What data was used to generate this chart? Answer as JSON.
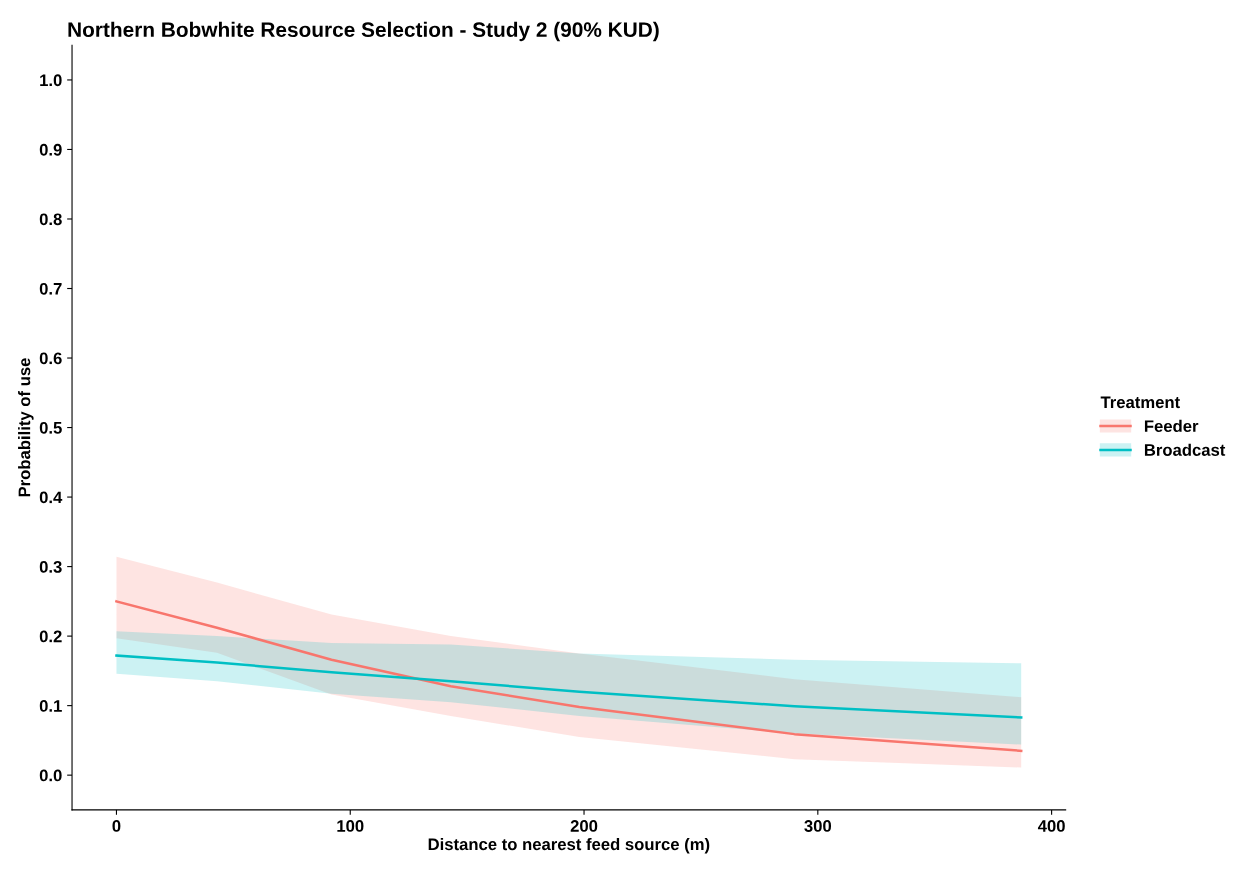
{
  "chart_data": {
    "type": "line",
    "title": "Northern Bobwhite Resource Selection - Study 2 (90% KUD)",
    "xlabel": "Distance to nearest feed source (m)",
    "ylabel": "Probability of use",
    "legend_title": "Treatment",
    "legend": "right",
    "grid": false,
    "x": [
      0,
      43,
      92,
      143,
      198,
      290,
      387
    ],
    "series": [
      {
        "name": "Feeder",
        "color": "#f8766d",
        "values": [
          0.25,
          0.212,
          0.166,
          0.128,
          0.098,
          0.059,
          0.035
        ],
        "lower": [
          0.197,
          0.176,
          0.116,
          0.085,
          0.055,
          0.023,
          0.011
        ],
        "upper": [
          0.314,
          0.277,
          0.231,
          0.2,
          0.175,
          0.138,
          0.112
        ]
      },
      {
        "name": "Broadcast",
        "color": "#00bfc4",
        "values": [
          0.172,
          0.162,
          0.148,
          0.135,
          0.12,
          0.099,
          0.083
        ],
        "lower": [
          0.146,
          0.135,
          0.117,
          0.105,
          0.085,
          0.06,
          0.044
        ],
        "upper": [
          0.207,
          0.2,
          0.19,
          0.188,
          0.175,
          0.166,
          0.161
        ]
      }
    ],
    "xlim": [
      -19,
      406
    ],
    "ylim": [
      -0.05,
      1.05
    ],
    "xticks": [
      0,
      100,
      200,
      300,
      400
    ],
    "yticks": [
      {
        "value": 0,
        "label": "0.0"
      },
      {
        "value": 0.1,
        "label": "0.1"
      },
      {
        "value": 0.2,
        "label": "0.2"
      },
      {
        "value": 0.3,
        "label": "0.3"
      },
      {
        "value": 0.4,
        "label": "0.4"
      },
      {
        "value": 0.5,
        "label": "0.5"
      },
      {
        "value": 0.6,
        "label": "0.6"
      },
      {
        "value": 0.7,
        "label": "0.7"
      },
      {
        "value": 0.8,
        "label": "0.8"
      },
      {
        "value": 0.9,
        "label": "0.9"
      },
      {
        "value": 1,
        "label": "1.0"
      }
    ]
  }
}
